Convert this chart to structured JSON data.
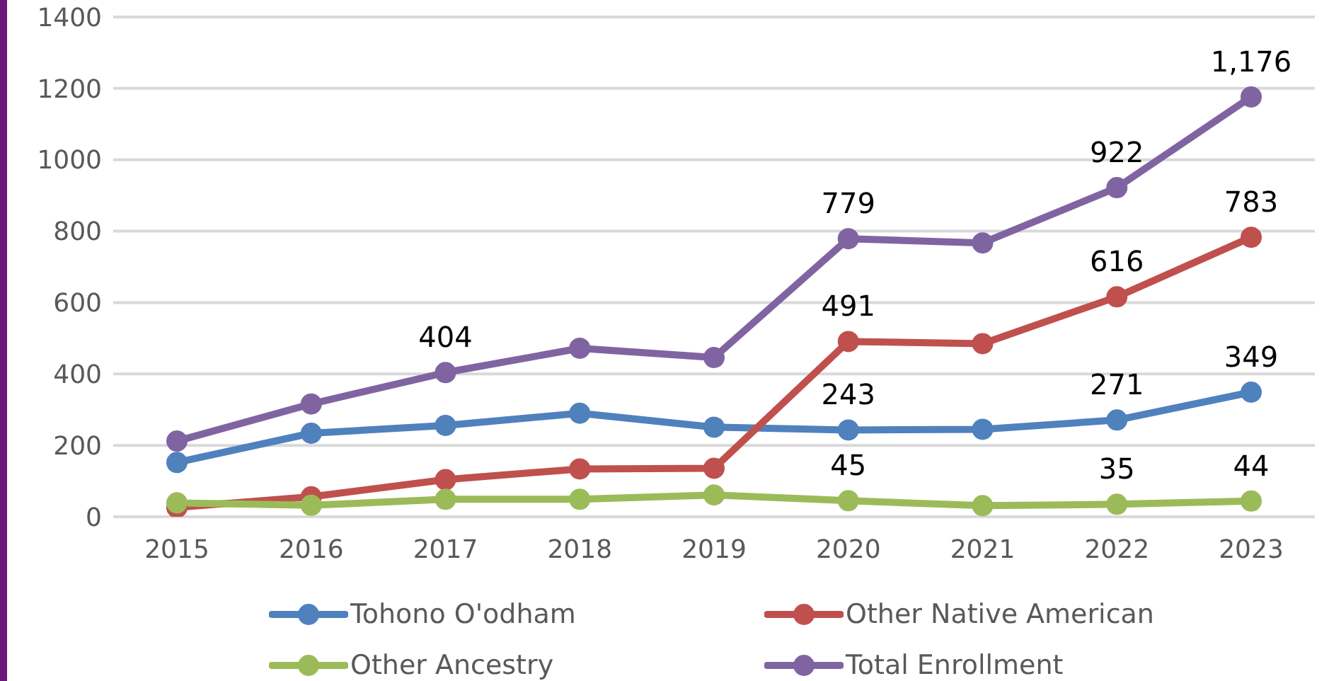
{
  "chart_data": {
    "type": "line",
    "categories": [
      "2015",
      "2016",
      "2017",
      "2018",
      "2019",
      "2020",
      "2021",
      "2022",
      "2023"
    ],
    "series": [
      {
        "name": "Tohono O'odham",
        "color": "#4f81bd",
        "values": [
          152,
          234,
          256,
          290,
          251,
          243,
          245,
          271,
          349
        ],
        "value_labels": [
          null,
          null,
          null,
          null,
          null,
          "243",
          null,
          "271",
          "349"
        ]
      },
      {
        "name": "Other Native American",
        "color": "#c0504d",
        "values": [
          26,
          56,
          104,
          134,
          136,
          491,
          485,
          616,
          783
        ],
        "value_labels": [
          null,
          null,
          null,
          null,
          null,
          "491",
          null,
          "616",
          "783"
        ]
      },
      {
        "name": "Other Ancestry",
        "color": "#9bbb59",
        "values": [
          39,
          32,
          49,
          49,
          61,
          45,
          31,
          35,
          44
        ],
        "value_labels": [
          null,
          null,
          null,
          null,
          null,
          "45",
          null,
          "35",
          "44"
        ]
      },
      {
        "name": "Total Enrollment",
        "color": "#8064a2",
        "values": [
          212,
          316,
          404,
          472,
          446,
          779,
          767,
          922,
          1176
        ],
        "value_labels": [
          null,
          null,
          "404",
          null,
          null,
          "779",
          null,
          "922",
          "1,176"
        ]
      }
    ],
    "ylim": [
      0,
      1400
    ],
    "yticks": [
      0,
      200,
      400,
      600,
      800,
      1000,
      1200,
      1400
    ],
    "grid": "y",
    "legend": "bottom",
    "marker": "circle",
    "line_style": "solid"
  }
}
